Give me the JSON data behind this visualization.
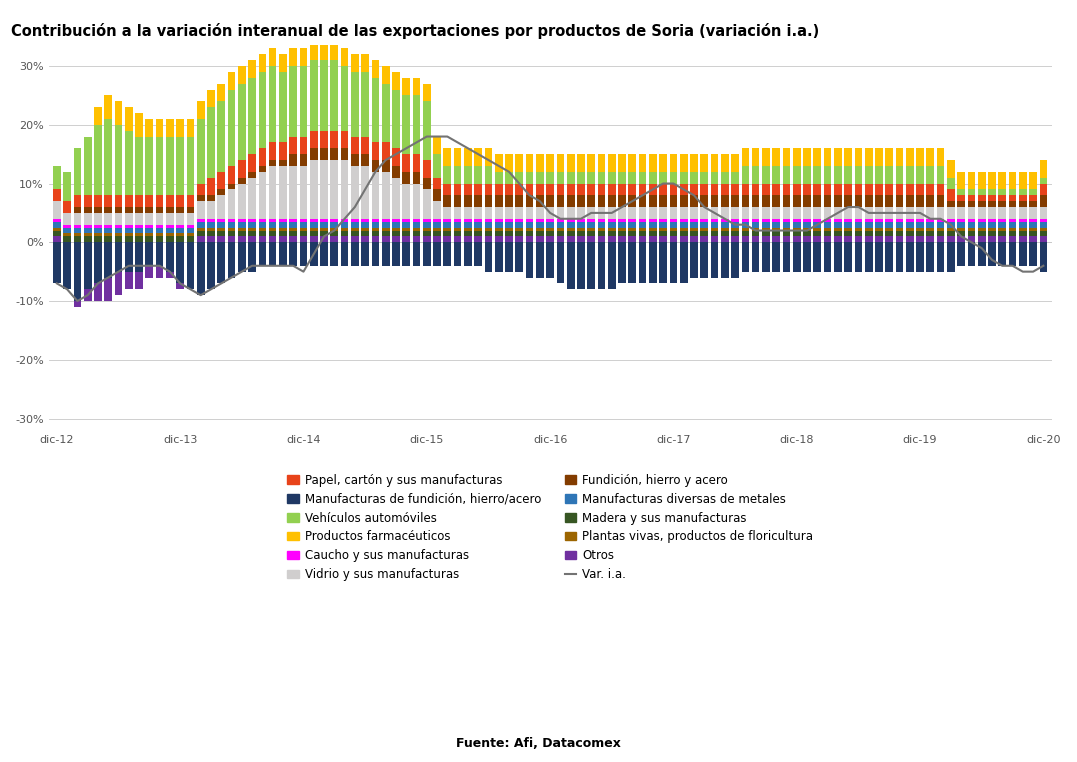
{
  "title": "Contribución a la variación interanual de las exportaciones por productos de Soria (variación i.a.)",
  "source": "Fuente: Afi, Datacomex",
  "ylim": [
    -0.32,
    0.335
  ],
  "yticks": [
    -0.3,
    -0.2,
    -0.1,
    0.0,
    0.1,
    0.2,
    0.3
  ],
  "ytick_labels": [
    "-30%",
    "-20%",
    "-10%",
    "0%",
    "10%",
    "20%",
    "30%"
  ],
  "colors": {
    "papel": "#E8431A",
    "manufacturas_metales": "#2E75B6",
    "vehiculos": "#92D050",
    "farmaceuticos": "#FFC000",
    "caucho": "#FF00FF",
    "vidrio": "#D0CECE",
    "fundicion": "#833C00",
    "manuf_fundicion": "#1F3864",
    "madera": "#375623",
    "plantas": "#9C6500",
    "otros": "#7030A0",
    "var_ia": "#737373"
  },
  "legend_labels": [
    "Papel, cartón y sus manufacturas",
    "Manufacturas diversas de metales",
    "Vehículos automóviles",
    "Productos farmacéuticos",
    "Caucho y sus manufacturas",
    "Vidrio y sus manufacturas",
    "Fundición, hierro y acero",
    "Manufacturas de fundición, hierro/acero",
    "Madera y sus manufacturas",
    "Plantas vivas, productos de floricultura",
    "Otros",
    "Var. i.a."
  ],
  "xtick_positions": [
    0,
    12,
    24,
    36,
    48,
    60,
    72,
    84,
    96
  ],
  "xtick_labels": [
    "dic-12",
    "dic-13",
    "dic-14",
    "dic-15",
    "dic-16",
    "dic-17",
    "dic-18",
    "dic-19",
    "dic-20"
  ],
  "papel": [
    0.02,
    0.02,
    0.02,
    0.02,
    0.02,
    0.02,
    0.02,
    0.02,
    0.02,
    0.02,
    0.02,
    0.02,
    0.02,
    0.02,
    0.02,
    0.03,
    0.03,
    0.03,
    0.03,
    0.03,
    0.03,
    0.03,
    0.03,
    0.03,
    0.03,
    0.03,
    0.03,
    0.03,
    0.03,
    0.03,
    0.03,
    0.03,
    0.03,
    0.03,
    0.03,
    0.03,
    0.03,
    0.02,
    0.02,
    0.02,
    0.02,
    0.02,
    0.02,
    0.02,
    0.02,
    0.02,
    0.02,
    0.02,
    0.02,
    0.02,
    0.02,
    0.02,
    0.02,
    0.02,
    0.02,
    0.02,
    0.02,
    0.02,
    0.02,
    0.02,
    0.02,
    0.02,
    0.02,
    0.02,
    0.02,
    0.02,
    0.02,
    0.02,
    0.02,
    0.02,
    0.02,
    0.02,
    0.02,
    0.02,
    0.02,
    0.02,
    0.02,
    0.02,
    0.02,
    0.02,
    0.02,
    0.02,
    0.02,
    0.02,
    0.02,
    0.02,
    0.02,
    0.02,
    0.01,
    0.01,
    0.01,
    0.01,
    0.01,
    0.01,
    0.01,
    0.01,
    0.02
  ],
  "manufacturas_metales": [
    0.01,
    0.01,
    0.01,
    0.01,
    0.01,
    0.01,
    0.01,
    0.01,
    0.01,
    0.01,
    0.01,
    0.01,
    0.01,
    0.01,
    0.01,
    0.01,
    0.01,
    0.01,
    0.01,
    0.01,
    0.01,
    0.01,
    0.01,
    0.01,
    0.01,
    0.01,
    0.01,
    0.01,
    0.01,
    0.01,
    0.01,
    0.01,
    0.01,
    0.01,
    0.01,
    0.01,
    0.01,
    0.01,
    0.01,
    0.01,
    0.01,
    0.01,
    0.01,
    0.01,
    0.01,
    0.01,
    0.01,
    0.01,
    0.01,
    0.01,
    0.01,
    0.01,
    0.01,
    0.01,
    0.01,
    0.01,
    0.01,
    0.01,
    0.01,
    0.01,
    0.01,
    0.01,
    0.01,
    0.01,
    0.01,
    0.01,
    0.01,
    0.01,
    0.01,
    0.01,
    0.01,
    0.01,
    0.01,
    0.01,
    0.01,
    0.01,
    0.01,
    0.01,
    0.01,
    0.01,
    0.01,
    0.01,
    0.01,
    0.01,
    0.01,
    0.01,
    0.01,
    0.01,
    0.01,
    0.01,
    0.01,
    0.01,
    0.01,
    0.01,
    0.01,
    0.01,
    0.01
  ],
  "vehiculos": [
    0.04,
    0.05,
    0.08,
    0.1,
    0.12,
    0.13,
    0.12,
    0.11,
    0.1,
    0.1,
    0.1,
    0.1,
    0.1,
    0.1,
    0.11,
    0.12,
    0.12,
    0.13,
    0.13,
    0.13,
    0.13,
    0.13,
    0.12,
    0.12,
    0.12,
    0.12,
    0.12,
    0.12,
    0.11,
    0.11,
    0.11,
    0.11,
    0.1,
    0.1,
    0.1,
    0.1,
    0.1,
    0.04,
    0.03,
    0.03,
    0.03,
    0.03,
    0.03,
    0.02,
    0.02,
    0.02,
    0.02,
    0.02,
    0.02,
    0.02,
    0.02,
    0.02,
    0.02,
    0.02,
    0.02,
    0.02,
    0.02,
    0.02,
    0.02,
    0.02,
    0.02,
    0.02,
    0.02,
    0.02,
    0.02,
    0.02,
    0.02,
    0.03,
    0.03,
    0.03,
    0.03,
    0.03,
    0.03,
    0.03,
    0.03,
    0.03,
    0.03,
    0.03,
    0.03,
    0.03,
    0.03,
    0.03,
    0.03,
    0.03,
    0.03,
    0.03,
    0.03,
    0.02,
    0.01,
    0.01,
    0.01,
    0.01,
    0.01,
    0.01,
    0.01,
    0.01,
    0.01
  ],
  "farmaceuticos": [
    0.0,
    0.0,
    0.0,
    0.0,
    0.03,
    0.04,
    0.04,
    0.04,
    0.04,
    0.03,
    0.03,
    0.03,
    0.03,
    0.03,
    0.03,
    0.03,
    0.03,
    0.03,
    0.03,
    0.03,
    0.03,
    0.03,
    0.03,
    0.03,
    0.03,
    0.03,
    0.03,
    0.03,
    0.03,
    0.03,
    0.03,
    0.03,
    0.03,
    0.03,
    0.03,
    0.03,
    0.03,
    0.03,
    0.03,
    0.03,
    0.03,
    0.03,
    0.03,
    0.03,
    0.03,
    0.03,
    0.03,
    0.03,
    0.03,
    0.03,
    0.03,
    0.03,
    0.03,
    0.03,
    0.03,
    0.03,
    0.03,
    0.03,
    0.03,
    0.03,
    0.03,
    0.03,
    0.03,
    0.03,
    0.03,
    0.03,
    0.03,
    0.03,
    0.03,
    0.03,
    0.03,
    0.03,
    0.03,
    0.03,
    0.03,
    0.03,
    0.03,
    0.03,
    0.03,
    0.03,
    0.03,
    0.03,
    0.03,
    0.03,
    0.03,
    0.03,
    0.03,
    0.03,
    0.03,
    0.03,
    0.03,
    0.03,
    0.03,
    0.03,
    0.03,
    0.03,
    0.03
  ],
  "caucho": [
    0.005,
    0.005,
    0.005,
    0.005,
    0.005,
    0.005,
    0.005,
    0.005,
    0.005,
    0.005,
    0.005,
    0.005,
    0.005,
    0.005,
    0.005,
    0.005,
    0.005,
    0.005,
    0.005,
    0.005,
    0.005,
    0.005,
    0.005,
    0.005,
    0.005,
    0.005,
    0.005,
    0.005,
    0.005,
    0.005,
    0.005,
    0.005,
    0.005,
    0.005,
    0.005,
    0.005,
    0.005,
    0.005,
    0.005,
    0.005,
    0.005,
    0.005,
    0.005,
    0.005,
    0.005,
    0.005,
    0.005,
    0.005,
    0.005,
    0.005,
    0.005,
    0.005,
    0.005,
    0.005,
    0.005,
    0.005,
    0.005,
    0.005,
    0.005,
    0.005,
    0.005,
    0.005,
    0.005,
    0.005,
    0.005,
    0.005,
    0.005,
    0.005,
    0.005,
    0.005,
    0.005,
    0.005,
    0.005,
    0.005,
    0.005,
    0.005,
    0.005,
    0.005,
    0.005,
    0.005,
    0.005,
    0.005,
    0.005,
    0.005,
    0.005,
    0.005,
    0.005,
    0.005,
    0.005,
    0.005,
    0.005,
    0.005,
    0.005,
    0.005,
    0.005,
    0.005,
    0.005
  ],
  "vidrio": [
    0.03,
    0.02,
    0.02,
    0.02,
    0.02,
    0.02,
    0.02,
    0.02,
    0.02,
    0.02,
    0.02,
    0.02,
    0.02,
    0.02,
    0.03,
    0.03,
    0.04,
    0.05,
    0.06,
    0.07,
    0.08,
    0.09,
    0.09,
    0.09,
    0.09,
    0.1,
    0.1,
    0.1,
    0.1,
    0.09,
    0.09,
    0.08,
    0.08,
    0.07,
    0.06,
    0.06,
    0.05,
    0.03,
    0.02,
    0.02,
    0.02,
    0.02,
    0.02,
    0.02,
    0.02,
    0.02,
    0.02,
    0.02,
    0.02,
    0.02,
    0.02,
    0.02,
    0.02,
    0.02,
    0.02,
    0.02,
    0.02,
    0.02,
    0.02,
    0.02,
    0.02,
    0.02,
    0.02,
    0.02,
    0.02,
    0.02,
    0.02,
    0.02,
    0.02,
    0.02,
    0.02,
    0.02,
    0.02,
    0.02,
    0.02,
    0.02,
    0.02,
    0.02,
    0.02,
    0.02,
    0.02,
    0.02,
    0.02,
    0.02,
    0.02,
    0.02,
    0.02,
    0.02,
    0.02,
    0.02,
    0.02,
    0.02,
    0.02,
    0.02,
    0.02,
    0.02,
    0.02
  ],
  "fundicion": [
    0.0,
    0.0,
    0.01,
    0.01,
    0.01,
    0.01,
    0.01,
    0.01,
    0.01,
    0.01,
    0.01,
    0.01,
    0.01,
    0.01,
    0.01,
    0.01,
    0.01,
    0.01,
    0.01,
    0.01,
    0.01,
    0.01,
    0.01,
    0.02,
    0.02,
    0.02,
    0.02,
    0.02,
    0.02,
    0.02,
    0.02,
    0.02,
    0.02,
    0.02,
    0.02,
    0.02,
    0.02,
    0.02,
    0.02,
    0.02,
    0.02,
    0.02,
    0.02,
    0.02,
    0.02,
    0.02,
    0.02,
    0.02,
    0.02,
    0.02,
    0.02,
    0.02,
    0.02,
    0.02,
    0.02,
    0.02,
    0.02,
    0.02,
    0.02,
    0.02,
    0.02,
    0.02,
    0.02,
    0.02,
    0.02,
    0.02,
    0.02,
    0.02,
    0.02,
    0.02,
    0.02,
    0.02,
    0.02,
    0.02,
    0.02,
    0.02,
    0.02,
    0.02,
    0.02,
    0.02,
    0.02,
    0.02,
    0.02,
    0.02,
    0.02,
    0.02,
    0.02,
    0.01,
    0.01,
    0.01,
    0.01,
    0.01,
    0.01,
    0.01,
    0.01,
    0.01,
    0.02
  ],
  "manuf_fundicion": [
    -0.07,
    -0.08,
    -0.1,
    -0.08,
    -0.07,
    -0.06,
    -0.05,
    -0.05,
    -0.05,
    -0.04,
    -0.04,
    -0.05,
    -0.07,
    -0.08,
    -0.09,
    -0.08,
    -0.07,
    -0.06,
    -0.05,
    -0.05,
    -0.04,
    -0.04,
    -0.04,
    -0.04,
    -0.04,
    -0.04,
    -0.04,
    -0.04,
    -0.04,
    -0.04,
    -0.04,
    -0.04,
    -0.04,
    -0.04,
    -0.04,
    -0.04,
    -0.04,
    -0.04,
    -0.04,
    -0.04,
    -0.04,
    -0.04,
    -0.05,
    -0.05,
    -0.05,
    -0.05,
    -0.06,
    -0.06,
    -0.06,
    -0.07,
    -0.08,
    -0.08,
    -0.08,
    -0.08,
    -0.08,
    -0.07,
    -0.07,
    -0.07,
    -0.07,
    -0.07,
    -0.07,
    -0.07,
    -0.06,
    -0.06,
    -0.06,
    -0.06,
    -0.06,
    -0.05,
    -0.05,
    -0.05,
    -0.05,
    -0.05,
    -0.05,
    -0.05,
    -0.05,
    -0.05,
    -0.05,
    -0.05,
    -0.05,
    -0.05,
    -0.05,
    -0.05,
    -0.05,
    -0.05,
    -0.05,
    -0.05,
    -0.05,
    -0.05,
    -0.04,
    -0.04,
    -0.04,
    -0.04,
    -0.04,
    -0.04,
    -0.04,
    -0.04,
    -0.05
  ],
  "madera": [
    0.01,
    0.01,
    0.01,
    0.01,
    0.01,
    0.01,
    0.01,
    0.01,
    0.01,
    0.01,
    0.01,
    0.01,
    0.01,
    0.01,
    0.01,
    0.01,
    0.01,
    0.01,
    0.01,
    0.01,
    0.01,
    0.01,
    0.01,
    0.01,
    0.01,
    0.01,
    0.01,
    0.01,
    0.01,
    0.01,
    0.01,
    0.01,
    0.01,
    0.01,
    0.01,
    0.01,
    0.01,
    0.01,
    0.01,
    0.01,
    0.01,
    0.01,
    0.01,
    0.01,
    0.01,
    0.01,
    0.01,
    0.01,
    0.01,
    0.01,
    0.01,
    0.01,
    0.01,
    0.01,
    0.01,
    0.01,
    0.01,
    0.01,
    0.01,
    0.01,
    0.01,
    0.01,
    0.01,
    0.01,
    0.01,
    0.01,
    0.01,
    0.01,
    0.01,
    0.01,
    0.01,
    0.01,
    0.01,
    0.01,
    0.01,
    0.01,
    0.01,
    0.01,
    0.01,
    0.01,
    0.01,
    0.01,
    0.01,
    0.01,
    0.01,
    0.01,
    0.01,
    0.01,
    0.01,
    0.01,
    0.01,
    0.01,
    0.01,
    0.01,
    0.01,
    0.01,
    0.01
  ],
  "plantas": [
    0.005,
    0.005,
    0.005,
    0.005,
    0.005,
    0.005,
    0.005,
    0.005,
    0.005,
    0.005,
    0.005,
    0.005,
    0.005,
    0.005,
    0.005,
    0.005,
    0.005,
    0.005,
    0.005,
    0.005,
    0.005,
    0.005,
    0.005,
    0.005,
    0.005,
    0.005,
    0.005,
    0.005,
    0.005,
    0.005,
    0.005,
    0.005,
    0.005,
    0.005,
    0.005,
    0.005,
    0.005,
    0.005,
    0.005,
    0.005,
    0.005,
    0.005,
    0.005,
    0.005,
    0.005,
    0.005,
    0.005,
    0.005,
    0.005,
    0.005,
    0.005,
    0.005,
    0.005,
    0.005,
    0.005,
    0.005,
    0.005,
    0.005,
    0.005,
    0.005,
    0.005,
    0.005,
    0.005,
    0.005,
    0.005,
    0.005,
    0.005,
    0.005,
    0.005,
    0.005,
    0.005,
    0.005,
    0.005,
    0.005,
    0.005,
    0.005,
    0.005,
    0.005,
    0.005,
    0.005,
    0.005,
    0.005,
    0.005,
    0.005,
    0.005,
    0.005,
    0.005,
    0.005,
    0.005,
    0.005,
    0.005,
    0.005,
    0.005,
    0.005,
    0.005,
    0.005,
    0.005
  ],
  "otros": [
    0.01,
    0.0,
    -0.01,
    -0.02,
    -0.03,
    -0.04,
    -0.04,
    -0.03,
    -0.03,
    -0.02,
    -0.02,
    -0.01,
    -0.01,
    0.0,
    0.01,
    0.01,
    0.01,
    0.01,
    0.01,
    0.01,
    0.01,
    0.01,
    0.01,
    0.01,
    0.01,
    0.01,
    0.01,
    0.01,
    0.01,
    0.01,
    0.01,
    0.01,
    0.01,
    0.01,
    0.01,
    0.01,
    0.01,
    0.01,
    0.01,
    0.01,
    0.01,
    0.01,
    0.01,
    0.01,
    0.01,
    0.01,
    0.01,
    0.01,
    0.01,
    0.01,
    0.01,
    0.01,
    0.01,
    0.01,
    0.01,
    0.01,
    0.01,
    0.01,
    0.01,
    0.01,
    0.01,
    0.01,
    0.01,
    0.01,
    0.01,
    0.01,
    0.01,
    0.01,
    0.01,
    0.01,
    0.01,
    0.01,
    0.01,
    0.01,
    0.01,
    0.01,
    0.01,
    0.01,
    0.01,
    0.01,
    0.01,
    0.01,
    0.01,
    0.01,
    0.01,
    0.01,
    0.01,
    0.01,
    0.01,
    0.01,
    0.01,
    0.01,
    0.01,
    0.01,
    0.01,
    0.01,
    0.01
  ],
  "var_ia": [
    -0.07,
    -0.08,
    -0.1,
    -0.09,
    -0.07,
    -0.06,
    -0.05,
    -0.04,
    -0.04,
    -0.04,
    -0.04,
    -0.05,
    -0.07,
    -0.08,
    -0.09,
    -0.08,
    -0.07,
    -0.06,
    -0.05,
    -0.04,
    -0.04,
    -0.04,
    -0.04,
    -0.04,
    -0.05,
    -0.02,
    0.01,
    0.02,
    0.04,
    0.06,
    0.09,
    0.12,
    0.14,
    0.15,
    0.16,
    0.17,
    0.18,
    0.18,
    0.18,
    0.17,
    0.16,
    0.15,
    0.14,
    0.13,
    0.12,
    0.1,
    0.08,
    0.07,
    0.05,
    0.04,
    0.04,
    0.04,
    0.05,
    0.05,
    0.05,
    0.06,
    0.07,
    0.08,
    0.09,
    0.1,
    0.1,
    0.09,
    0.08,
    0.06,
    0.05,
    0.04,
    0.03,
    0.03,
    0.02,
    0.02,
    0.02,
    0.02,
    0.02,
    0.02,
    0.03,
    0.04,
    0.05,
    0.06,
    0.06,
    0.05,
    0.05,
    0.05,
    0.05,
    0.05,
    0.05,
    0.04,
    0.04,
    0.03,
    0.01,
    0.0,
    -0.01,
    -0.03,
    -0.04,
    -0.04,
    -0.05,
    -0.05,
    -0.04
  ]
}
